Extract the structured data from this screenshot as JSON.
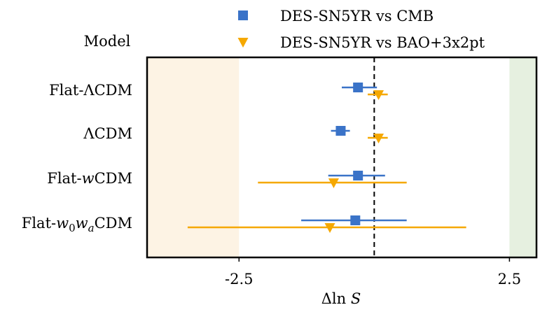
{
  "chart_data": {
    "type": "errorbar",
    "ylabel": "Model",
    "xlabel_prefix": "Δln ",
    "xlabel_var": "S",
    "xlim": [
      -4.2,
      3.0
    ],
    "xticks": [
      {
        "value": -2.5,
        "label": "-2.5"
      },
      {
        "value": 2.5,
        "label": "2.5"
      }
    ],
    "reference_line_x": 0,
    "shaded_regions": [
      {
        "from": -4.2,
        "to": -2.5,
        "color": "#fdf3e4"
      },
      {
        "from": 2.5,
        "to": 3.0,
        "color": "#e6f0e0"
      }
    ],
    "models": [
      {
        "parts": [
          {
            "t": "Flat-ΛCDM"
          }
        ]
      },
      {
        "parts": [
          {
            "t": "ΛCDM"
          }
        ]
      },
      {
        "parts": [
          {
            "t": "Flat-"
          },
          {
            "t": "w",
            "style": "italic"
          },
          {
            "t": "CDM"
          }
        ]
      },
      {
        "parts": [
          {
            "t": "Flat-"
          },
          {
            "t": "w",
            "style": "italic"
          },
          {
            "t": "0",
            "style": "sub"
          },
          {
            "t": "w",
            "style": "italic"
          },
          {
            "t": "a",
            "style": "sub-italic"
          },
          {
            "t": "CDM"
          }
        ]
      }
    ],
    "series": [
      {
        "name": "DES-SN5YR vs CMB",
        "marker": "square",
        "color": "#3a73c8",
        "points": [
          {
            "x": -0.3,
            "lo": -0.6,
            "hi": 0.05
          },
          {
            "x": -0.62,
            "lo": -0.8,
            "hi": -0.45
          },
          {
            "x": -0.3,
            "lo": -0.85,
            "hi": 0.2
          },
          {
            "x": -0.35,
            "lo": -1.35,
            "hi": 0.6
          }
        ]
      },
      {
        "name": "DES-SN5YR vs BAO+3x2pt",
        "marker": "triangle-down",
        "color": "#f5a800",
        "points": [
          {
            "x": 0.08,
            "lo": -0.12,
            "hi": 0.25
          },
          {
            "x": 0.08,
            "lo": -0.12,
            "hi": 0.25
          },
          {
            "x": -0.75,
            "lo": -2.15,
            "hi": 0.6
          },
          {
            "x": -0.82,
            "lo": -3.45,
            "hi": 1.7
          }
        ]
      }
    ]
  }
}
